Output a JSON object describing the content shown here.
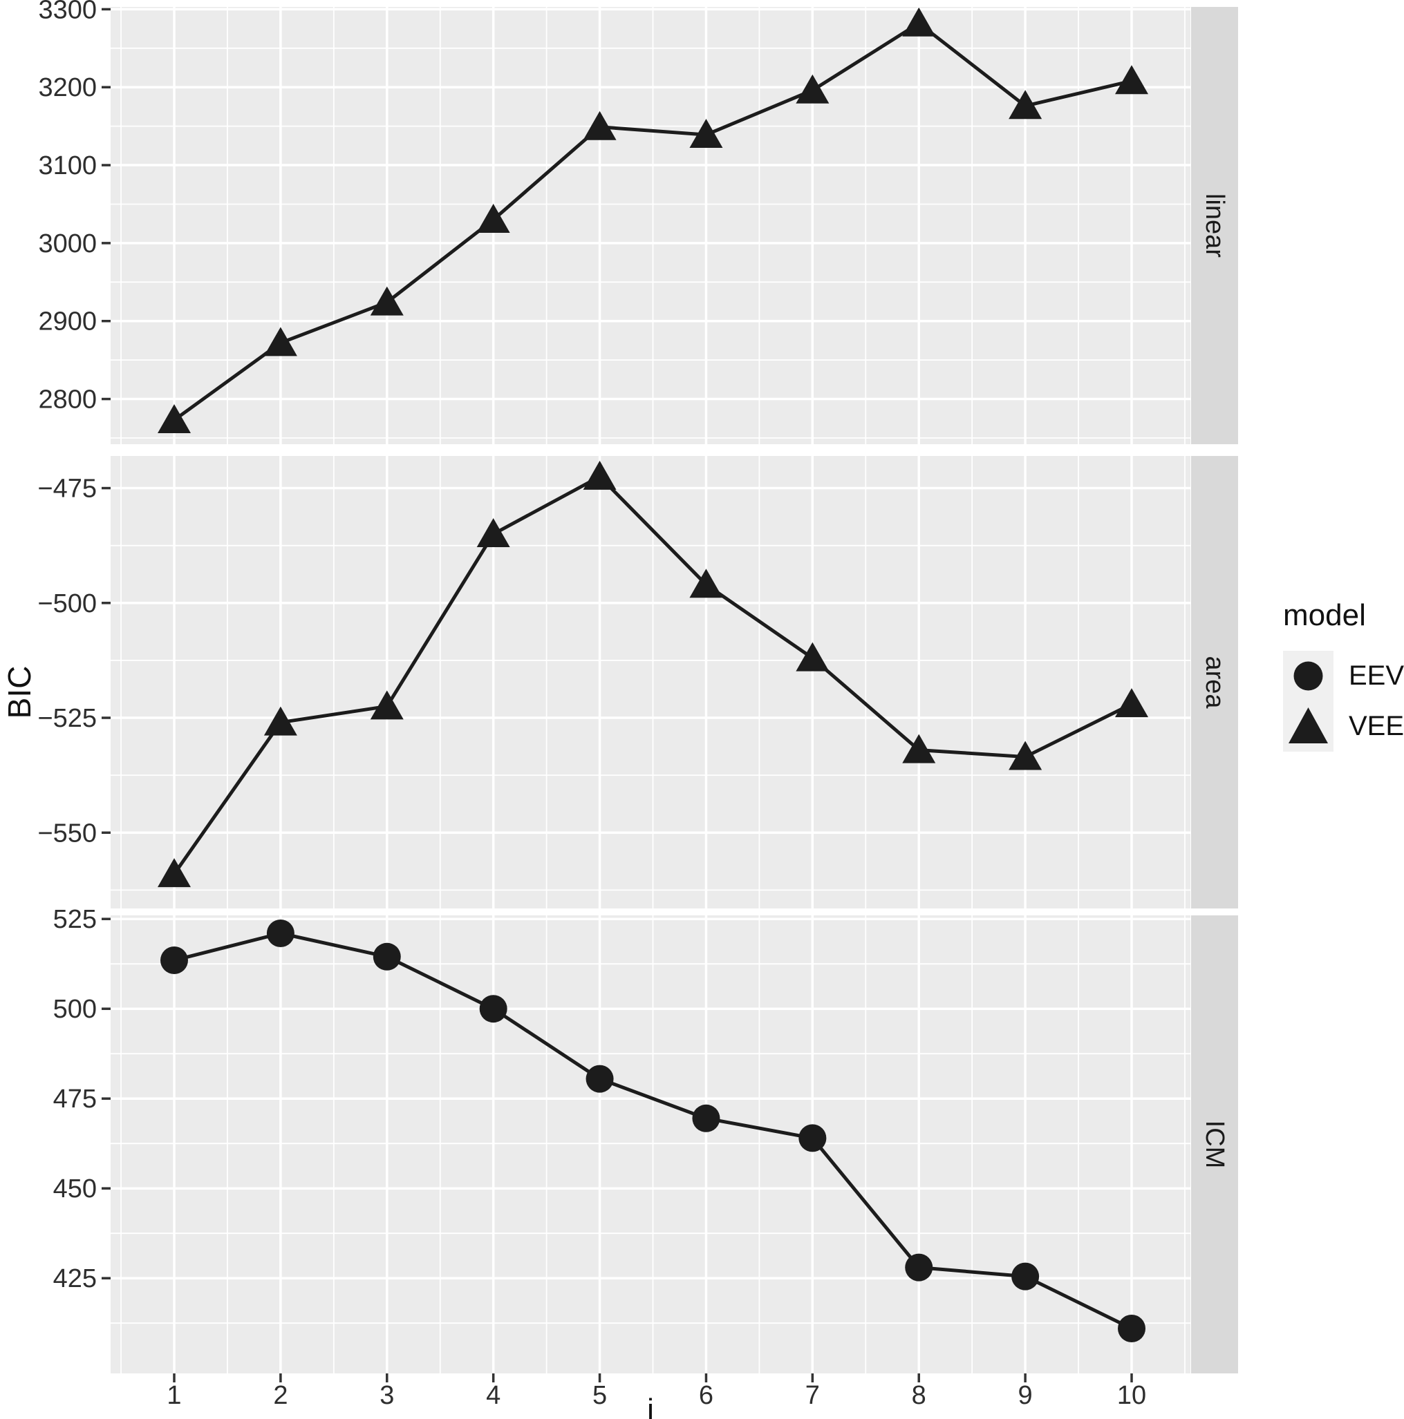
{
  "colors": {
    "panel_bg": "#ebebeb",
    "grid_major": "#ffffff",
    "grid_minor": "#f7f7f7",
    "strip_bg": "#d9d9d9",
    "strip_text": "#1a1a1a",
    "axis_text": "#2e2e2e",
    "axis_title": "#111111",
    "tick_mark": "#333333",
    "series": "#1c1c1c",
    "legend_key_bg": "#f0f0f0",
    "background": "#ffffff"
  },
  "chart_data": {
    "type": "line",
    "title": "",
    "xlabel": "i",
    "ylabel": "BIC",
    "grid": "on",
    "x": [
      1,
      2,
      3,
      4,
      5,
      6,
      7,
      8,
      9,
      10
    ],
    "xtick_labels": [
      "1",
      "2",
      "3",
      "4",
      "5",
      "6",
      "7",
      "8",
      "9",
      "10"
    ],
    "xlim": [
      0.4,
      10.55
    ],
    "legend": {
      "title": "model",
      "position": "right",
      "entries": [
        {
          "label": "EEV",
          "marker": "circle"
        },
        {
          "label": "VEE",
          "marker": "triangle"
        }
      ]
    },
    "facets": [
      {
        "label": "linear",
        "ylim": [
          2742,
          3303
        ],
        "yticks": [
          2800,
          2900,
          3000,
          3100,
          3200,
          3300
        ],
        "ytick_labels": [
          "2800",
          "2900",
          "3000",
          "3100",
          "3200",
          "3300"
        ],
        "series": [
          {
            "name": "VEE",
            "marker": "triangle",
            "values": [
              2773,
              2872,
              2924,
              3030,
              3149,
              3139,
              3196,
              3282,
              3176,
              3208
            ]
          }
        ]
      },
      {
        "label": "area",
        "ylim": [
          -566.5,
          -468
        ],
        "yticks": [
          -550,
          -525,
          -500,
          -475
        ],
        "ytick_labels": [
          "−550",
          "−525",
          "−500",
          "−475"
        ],
        "series": [
          {
            "name": "VEE",
            "marker": "triangle",
            "values": [
              -559,
              -526,
              -522.5,
              -485,
              -472.5,
              -496,
              -512,
              -532,
              -533.5,
              -522
            ]
          }
        ]
      },
      {
        "label": "ICM",
        "ylim": [
          398.5,
          526
        ],
        "yticks": [
          425,
          450,
          475,
          500,
          525
        ],
        "ytick_labels": [
          "425",
          "450",
          "475",
          "500",
          "525"
        ],
        "series": [
          {
            "name": "EEV",
            "marker": "circle",
            "values": [
              513.5,
              521,
              514.5,
              500,
              480.5,
              469.5,
              464,
              428,
              425.5,
              411
            ]
          }
        ]
      }
    ]
  }
}
